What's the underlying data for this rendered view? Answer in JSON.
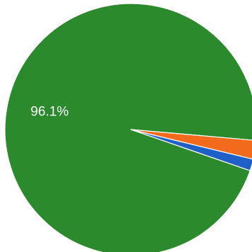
{
  "chart_data": {
    "type": "pie",
    "slices": [
      {
        "value": 96.1,
        "label": "96.1%",
        "color": "#2a8a2c"
      },
      {
        "value": 1.5,
        "label": "",
        "color": "#1f5fc8"
      },
      {
        "value": 2.4,
        "label": "",
        "color": "#f26b1d"
      }
    ],
    "start_angle_deg": 5,
    "direction": "counterclockwise",
    "legend": "none"
  }
}
